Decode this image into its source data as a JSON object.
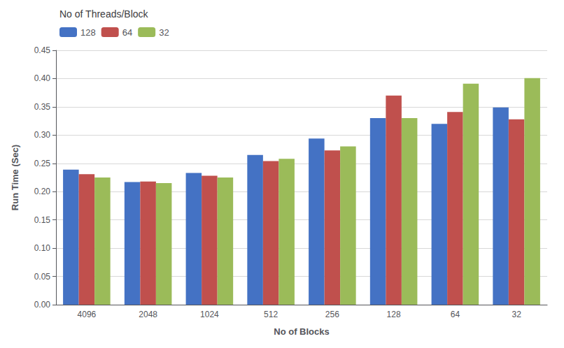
{
  "chart_data": {
    "type": "bar",
    "categories": [
      "4096",
      "2048",
      "1024",
      "512",
      "256",
      "128",
      "64",
      "32"
    ],
    "series": [
      {
        "name": "128",
        "color": "#4472C4",
        "values": [
          0.239,
          0.217,
          0.233,
          0.265,
          0.294,
          0.33,
          0.32,
          0.349
        ]
      },
      {
        "name": "64",
        "color": "#C0504D",
        "values": [
          0.231,
          0.218,
          0.228,
          0.254,
          0.273,
          0.37,
          0.341,
          0.328
        ]
      },
      {
        "name": "32",
        "color": "#9BBB59",
        "values": [
          0.225,
          0.215,
          0.225,
          0.258,
          0.28,
          0.33,
          0.391,
          0.401
        ]
      }
    ],
    "xlabel": "No of Blocks",
    "ylabel": "Run Time (Sec)",
    "legend_title": "No of Threads/Block",
    "legend": "upper left",
    "ylim": [
      0,
      0.45
    ],
    "yticks": [
      {
        "value": 0,
        "label": "0.00"
      },
      {
        "value": 0.05,
        "label": "0.05"
      },
      {
        "value": 0.1,
        "label": "0.10"
      },
      {
        "value": 0.15,
        "label": "0.15"
      },
      {
        "value": 0.2,
        "label": "0.20"
      },
      {
        "value": 0.25,
        "label": "0.25"
      },
      {
        "value": 0.3,
        "label": "0.30"
      },
      {
        "value": 0.35,
        "label": "0.35"
      },
      {
        "value": 0.4,
        "label": "0.40"
      },
      {
        "value": 0.45,
        "label": "0.45"
      }
    ],
    "grid": true
  }
}
